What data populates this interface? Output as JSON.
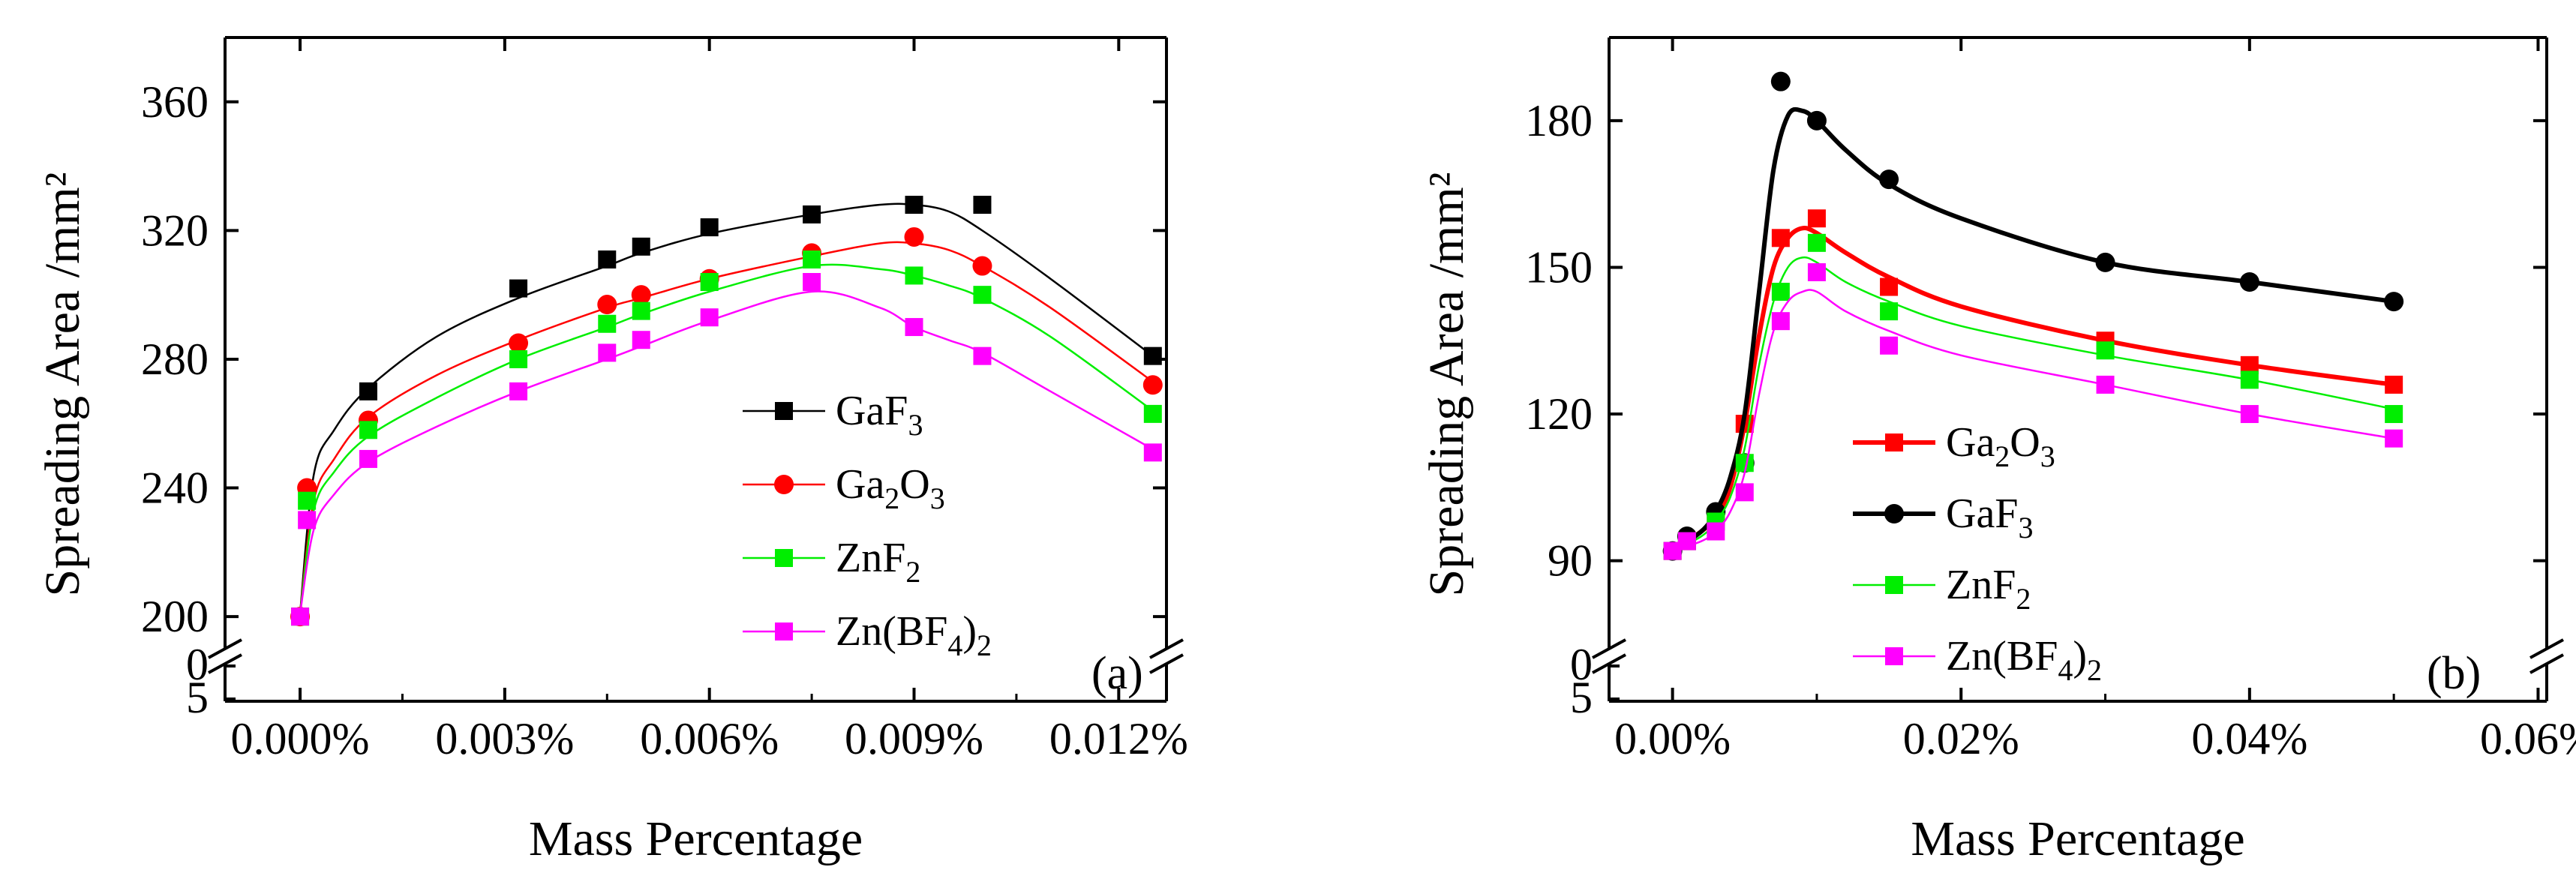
{
  "chart_data": [
    {
      "type": "line",
      "panel_label": "(a)",
      "xlabel": "Mass Percentage",
      "ylabel": "Spreading Area /mm²",
      "xlim": [
        -0.0011,
        0.0127
      ],
      "ylim": [
        190,
        380
      ],
      "x_ticks": [
        0.0,
        0.003,
        0.006,
        0.009,
        0.012
      ],
      "x_tick_labels": [
        "0.000%",
        "0.003%",
        "0.006%",
        "0.009%",
        "0.012%"
      ],
      "y_ticks": [
        200,
        240,
        280,
        320,
        360
      ],
      "y_tick_labels": [
        "200",
        "240",
        "280",
        "320",
        "360"
      ],
      "y_break_labels": [
        "5",
        "0"
      ],
      "legend_position": "center-right",
      "series": [
        {
          "name": "GaF3",
          "color": "#000000",
          "marker": "square",
          "x": [
            0.0,
            0.001,
            0.0032,
            0.0045,
            0.005,
            0.006,
            0.0075,
            0.009,
            0.01,
            0.0125
          ],
          "y": [
            200,
            270,
            302,
            311,
            315,
            321,
            325,
            328,
            328,
            281
          ],
          "curve_x": [
            0.0,
            0.0002,
            0.0005,
            0.001,
            0.002,
            0.0032,
            0.0045,
            0.005,
            0.006,
            0.0075,
            0.0085,
            0.009,
            0.0095,
            0.01,
            0.011,
            0.0125
          ],
          "curve_y": [
            201,
            244,
            258,
            271,
            287,
            299,
            309,
            313,
            319,
            325,
            328,
            328,
            326,
            320,
            305,
            281
          ]
        },
        {
          "name": "Ga2O3",
          "color": "#ff0000",
          "marker": "circle",
          "x": [
            0.0,
            0.0001,
            0.001,
            0.0032,
            0.0045,
            0.005,
            0.006,
            0.0075,
            0.009,
            0.01,
            0.0125
          ],
          "y": [
            200,
            240,
            261,
            285,
            297,
            300,
            305,
            313,
            318,
            309,
            272
          ],
          "curve_x": [
            0.0,
            0.0002,
            0.0005,
            0.001,
            0.002,
            0.0032,
            0.0045,
            0.005,
            0.006,
            0.0075,
            0.0085,
            0.009,
            0.0095,
            0.01,
            0.011,
            0.0125
          ],
          "curve_y": [
            201,
            236,
            249,
            262,
            275,
            286,
            296,
            299,
            305,
            312,
            316,
            316,
            314,
            309,
            296,
            273
          ]
        },
        {
          "name": "ZnF2",
          "color": "#00ee00",
          "marker": "square",
          "x": [
            0.0,
            0.0001,
            0.001,
            0.0032,
            0.0045,
            0.005,
            0.006,
            0.0075,
            0.009,
            0.01,
            0.0125
          ],
          "y": [
            200,
            236,
            258,
            280,
            291,
            295,
            304,
            311,
            306,
            300,
            263
          ],
          "curve_x": [
            0.0,
            0.0002,
            0.0005,
            0.001,
            0.002,
            0.0032,
            0.0045,
            0.005,
            0.006,
            0.0075,
            0.0085,
            0.009,
            0.0095,
            0.01,
            0.011,
            0.0125
          ],
          "curve_y": [
            201,
            233,
            245,
            256,
            268,
            280,
            290,
            294,
            301,
            309,
            308,
            306,
            303,
            299,
            287,
            264
          ]
        },
        {
          "name": "Zn(BF4)2",
          "color": "#ff00ff",
          "marker": "square",
          "x": [
            0.0,
            0.0001,
            0.001,
            0.0032,
            0.0045,
            0.005,
            0.006,
            0.0075,
            0.009,
            0.01,
            0.0125
          ],
          "y": [
            200,
            230,
            249,
            270,
            282,
            286,
            293,
            304,
            290,
            281,
            251
          ],
          "curve_x": [
            0.0,
            0.0002,
            0.0005,
            0.001,
            0.002,
            0.0032,
            0.0045,
            0.005,
            0.006,
            0.0075,
            0.0085,
            0.009,
            0.0095,
            0.01,
            0.011,
            0.0125
          ],
          "curve_y": [
            201,
            227,
            238,
            248,
            259,
            270,
            280,
            284,
            292,
            301,
            296,
            290,
            286,
            282,
            270,
            252
          ]
        }
      ]
    },
    {
      "type": "line",
      "panel_label": "(b)",
      "xlabel": "Mass Percentage",
      "ylabel": "Spreading Area /mm²",
      "xlim": [
        -0.0044,
        0.0606
      ],
      "ylim": [
        72,
        197
      ],
      "x_ticks": [
        0.0,
        0.02,
        0.04,
        0.06
      ],
      "x_tick_labels": [
        "0.00%",
        "0.02%",
        "0.04%",
        "0.06%"
      ],
      "y_ticks": [
        90,
        120,
        150,
        180
      ],
      "y_tick_labels": [
        "90",
        "120",
        "150",
        "180"
      ],
      "y_break_labels": [
        "5",
        "0"
      ],
      "legend_position": "bottom-center",
      "series": [
        {
          "name": "Ga2O3",
          "color": "#ff0000",
          "marker": "square",
          "x": [
            0.0,
            0.001,
            0.003,
            0.005,
            0.0075,
            0.01,
            0.015,
            0.03,
            0.04,
            0.05
          ],
          "y": [
            92,
            94,
            99,
            118,
            156,
            160,
            146,
            135,
            130,
            126
          ],
          "curve_x": [
            0.0,
            0.002,
            0.003,
            0.004,
            0.005,
            0.006,
            0.007,
            0.008,
            0.009,
            0.01,
            0.012,
            0.015,
            0.02,
            0.03,
            0.04,
            0.05
          ],
          "curve_y": [
            92,
            96,
            99,
            105,
            118,
            136,
            150,
            156,
            158,
            157,
            153,
            148,
            142,
            135,
            130,
            126
          ]
        },
        {
          "name": "GaF3",
          "color": "#000000",
          "marker": "circle",
          "x": [
            0.0,
            0.001,
            0.003,
            0.005,
            0.0075,
            0.01,
            0.015,
            0.03,
            0.04,
            0.05
          ],
          "y": [
            92,
            95,
            100,
            110,
            188,
            180,
            168,
            151,
            147,
            143
          ],
          "curve_x": [
            0.0,
            0.002,
            0.003,
            0.004,
            0.005,
            0.006,
            0.007,
            0.008,
            0.009,
            0.01,
            0.012,
            0.015,
            0.02,
            0.03,
            0.04,
            0.05
          ],
          "curve_y": [
            92,
            96,
            100,
            107,
            120,
            145,
            170,
            181,
            182,
            180,
            174,
            167,
            160,
            151,
            147,
            143
          ]
        },
        {
          "name": "ZnF2",
          "color": "#00ee00",
          "marker": "square",
          "x": [
            0.0,
            0.001,
            0.003,
            0.005,
            0.0075,
            0.01,
            0.015,
            0.03,
            0.04,
            0.05
          ],
          "y": [
            92,
            94,
            98,
            110,
            145,
            155,
            141,
            133,
            127,
            120
          ],
          "curve_x": [
            0.0,
            0.002,
            0.003,
            0.004,
            0.005,
            0.006,
            0.007,
            0.008,
            0.009,
            0.01,
            0.012,
            0.015,
            0.02,
            0.03,
            0.04,
            0.05
          ],
          "curve_y": [
            92,
            95,
            98,
            103,
            113,
            130,
            143,
            150,
            152,
            151,
            147,
            143,
            138,
            132,
            127,
            121
          ]
        },
        {
          "name": "Zn(BF4)2",
          "color": "#ff00ff",
          "marker": "square",
          "x": [
            0.0,
            0.001,
            0.003,
            0.005,
            0.0075,
            0.01,
            0.015,
            0.03,
            0.04,
            0.05
          ],
          "y": [
            92,
            94,
            96,
            104,
            139,
            149,
            134,
            126,
            120,
            115
          ],
          "curve_x": [
            0.0,
            0.002,
            0.003,
            0.004,
            0.005,
            0.006,
            0.007,
            0.008,
            0.009,
            0.01,
            0.012,
            0.015,
            0.02,
            0.03,
            0.04,
            0.05
          ],
          "curve_y": [
            92,
            94,
            96,
            100,
            108,
            124,
            137,
            143,
            145,
            145,
            141,
            137,
            132,
            126,
            120,
            115
          ]
        }
      ]
    }
  ]
}
